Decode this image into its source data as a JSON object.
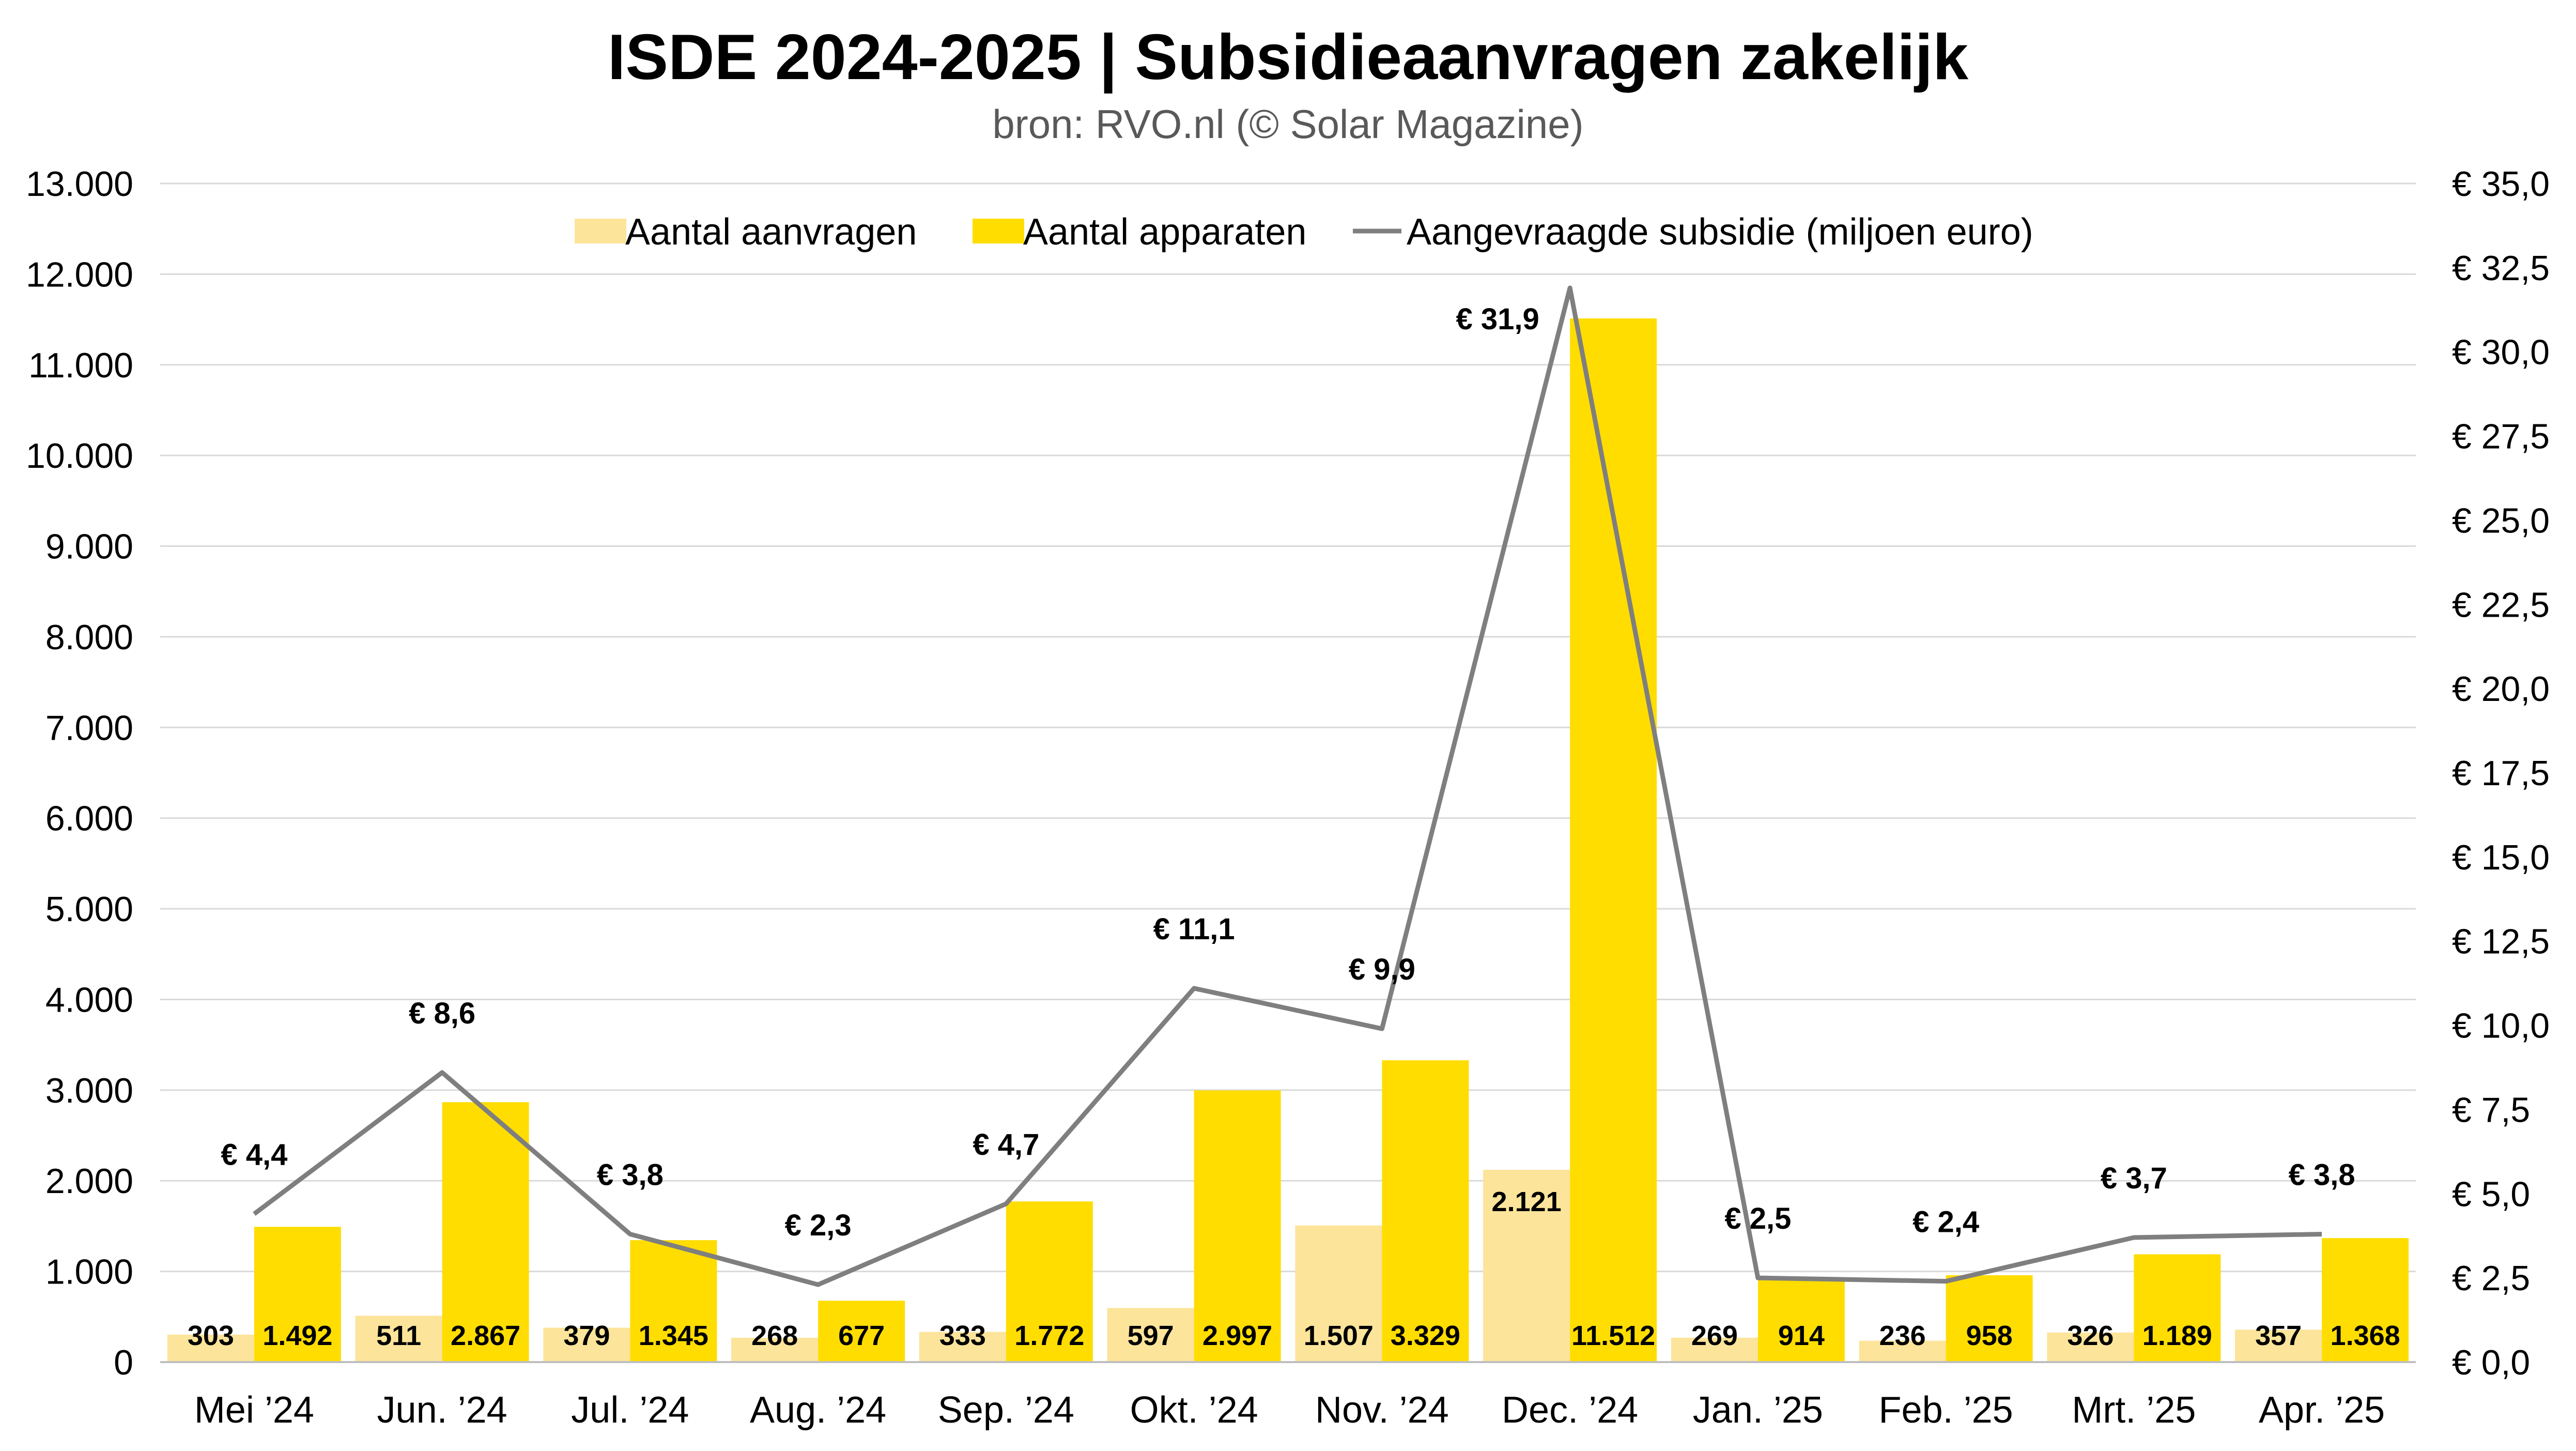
{
  "chart_data": {
    "type": "bar",
    "title": "ISDE 2024-2025 | Subsidieaanvragen zakelijk",
    "subtitle": "bron: RVO.nl (© Solar Magazine)",
    "categories": [
      "Mei ’24",
      "Jun. ’24",
      "Jul. ’24",
      "Aug. ’24",
      "Sep. ’24",
      "Okt. ’24",
      "Nov. ’24",
      "Dec. ’24",
      "Jan. ’25",
      "Feb. ’25",
      "Mrt. ’25",
      "Apr. ’25"
    ],
    "series": [
      {
        "name": "Aantal aanvragen",
        "type": "bar",
        "axis": "left",
        "color": "#FCE49A",
        "values": [
          303,
          511,
          379,
          268,
          333,
          597,
          1507,
          2121,
          269,
          236,
          326,
          357
        ],
        "labels": [
          "303",
          "511",
          "379",
          "268",
          "333",
          "597",
          "1.507",
          "2.121",
          "269",
          "236",
          "326",
          "357"
        ]
      },
      {
        "name": "Aantal apparaten",
        "type": "bar",
        "axis": "left",
        "color": "#FFDD00",
        "values": [
          1492,
          2867,
          1345,
          677,
          1772,
          2997,
          3329,
          11512,
          914,
          958,
          1189,
          1368
        ],
        "labels": [
          "1.492",
          "2.867",
          "1.345",
          "677",
          "1.772",
          "2.997",
          "3.329",
          "11.512",
          "914",
          "958",
          "1.189",
          "1.368"
        ]
      },
      {
        "name": "Aangevraagde subsidie (miljoen euro)",
        "type": "line",
        "axis": "right",
        "color": "#7F7F7F",
        "values": [
          4.4,
          8.6,
          3.8,
          2.3,
          4.7,
          11.1,
          9.9,
          31.9,
          2.5,
          2.4,
          3.7,
          3.8
        ],
        "labels": [
          "€ 4,4",
          "€ 8,6",
          "€ 3,8",
          "€ 2,3",
          "€ 4,7",
          "€ 11,1",
          "€ 9,9",
          "€ 31,9",
          "€ 2,5",
          "€ 2,4",
          "€ 3,7",
          "€ 3,8"
        ]
      }
    ],
    "y_left": {
      "range": [
        0,
        13000
      ],
      "ticks": [
        0,
        1000,
        2000,
        3000,
        4000,
        5000,
        6000,
        7000,
        8000,
        9000,
        10000,
        11000,
        12000,
        13000
      ],
      "tick_labels": [
        "0",
        "1.000",
        "2.000",
        "3.000",
        "4.000",
        "5.000",
        "6.000",
        "7.000",
        "8.000",
        "9.000",
        "10.000",
        "11.000",
        "12.000",
        "13.000"
      ]
    },
    "y_right": {
      "range": [
        0,
        35
      ],
      "ticks": [
        0,
        2.5,
        5,
        7.5,
        10,
        12.5,
        15,
        17.5,
        20,
        22.5,
        25,
        27.5,
        30,
        32.5,
        35
      ],
      "tick_labels": [
        "€ 0,0",
        "€ 2,5",
        "€ 5,0",
        "€ 7,5",
        "€ 10,0",
        "€ 12,5",
        "€ 15,0",
        "€ 17,5",
        "€ 20,0",
        "€ 22,5",
        "€ 25,0",
        "€ 27,5",
        "€ 30,0",
        "€ 32,5",
        "€ 35,0"
      ]
    },
    "grid": true,
    "legend_position": "top-center"
  }
}
